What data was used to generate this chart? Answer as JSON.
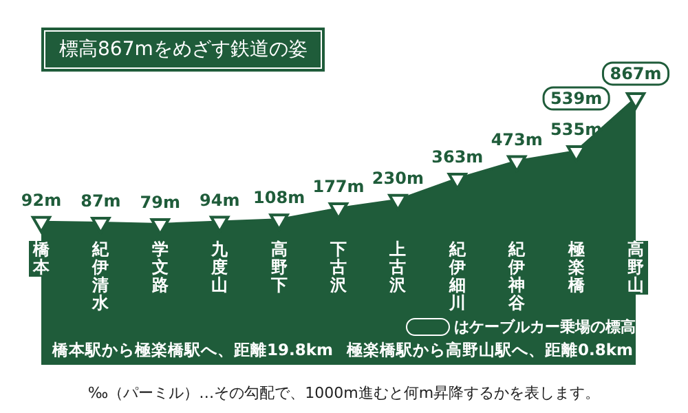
{
  "chart_data": {
    "type": "area",
    "title": "標高867mをめざす鉄道の姿",
    "categories": [
      "橋本",
      "紀伊清水",
      "学文路",
      "九度山",
      "高野下",
      "下古沢",
      "上古沢",
      "紀伊細川",
      "紀伊神谷",
      "極楽橋",
      "高野山"
    ],
    "series": [
      {
        "color": "#1f5c3a",
        "values": [
          92,
          87,
          79,
          94,
          108,
          177,
          230,
          363,
          473,
          535,
          867
        ],
        "value_labels": [
          "92m",
          "87m",
          "79m",
          "94m",
          "108m",
          "177m",
          "230m",
          "363m",
          "473m",
          "535m",
          null
        ]
      }
    ],
    "marker": "triangle",
    "grid": false,
    "legend": false,
    "tick_labels": "x",
    "annotations": [
      "はケーブルカー乗場の標高",
      "橋本駅から極楽橋駅へ、距離19.8km",
      "極楽橋駅から高野山駅へ、距離0.8km",
      "‰（パーミル）…その勾配で、1000m進むと何m昇降するかを表します。",
      {
        "text": "539m",
        "x": "極楽橋",
        "y": 539
      },
      {
        "text": "867m",
        "x": "高野山",
        "y": 867
      }
    ]
  }
}
